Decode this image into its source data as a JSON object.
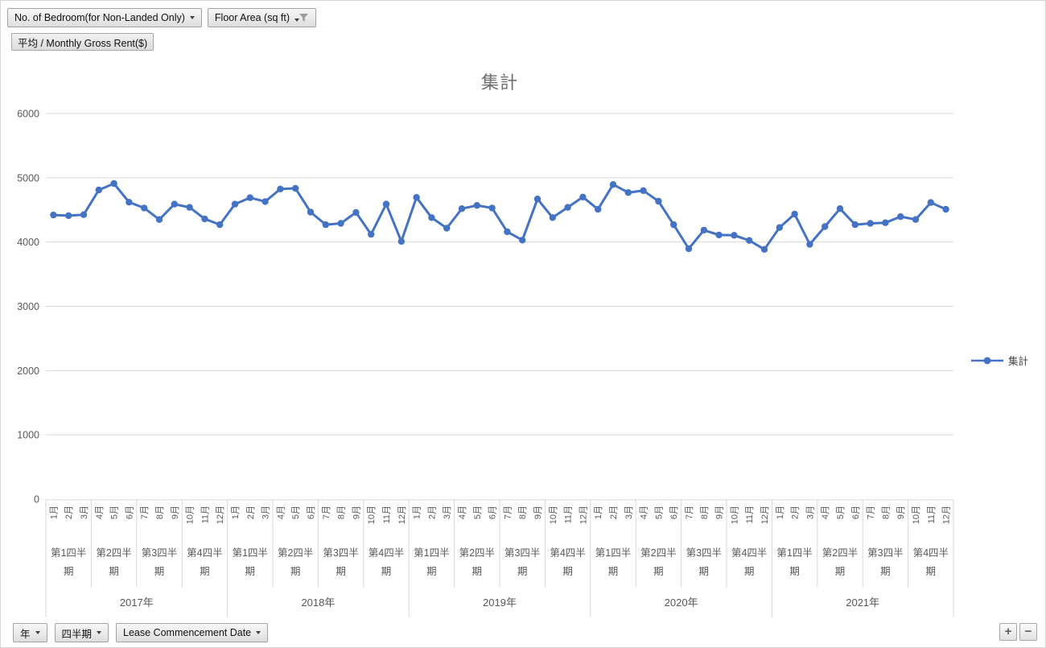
{
  "pivot_buttons": {
    "top": [
      {
        "label": "No. of Bedroom(for Non-Landed Only)",
        "filtered": false
      },
      {
        "label": "Floor Area (sq ft)",
        "filtered": true
      }
    ],
    "value_button": "平均 / Monthly Gross Rent($)",
    "bottom": [
      {
        "label": "年"
      },
      {
        "label": "四半期"
      },
      {
        "label": "Lease Commencement Date"
      }
    ],
    "zoom_in": "+",
    "zoom_out": "−"
  },
  "chart_data": {
    "type": "line",
    "title": "集計",
    "legend": [
      "集計"
    ],
    "legend_position": "right",
    "series_color": "#4472C4",
    "grid": true,
    "ylim": [
      0,
      6000
    ],
    "yticks": [
      0,
      1000,
      2000,
      3000,
      4000,
      5000,
      6000
    ],
    "years": [
      "2017年",
      "2018年",
      "2019年",
      "2020年",
      "2021年"
    ],
    "quarters": [
      "第1四半期",
      "第2四半期",
      "第3四半期",
      "第4四半期"
    ],
    "months": [
      "1月",
      "2月",
      "3月",
      "4月",
      "5月",
      "6月",
      "7月",
      "8月",
      "9月",
      "10月",
      "11月",
      "12月"
    ],
    "axis_field_rows": [
      "月",
      "四半期",
      "年"
    ],
    "series": [
      {
        "name": "集計",
        "values": [
          4420,
          4410,
          4425,
          4810,
          4910,
          4620,
          4530,
          4350,
          4590,
          4540,
          4360,
          4270,
          4590,
          4690,
          4630,
          4825,
          4835,
          4465,
          4270,
          4290,
          4460,
          4120,
          4590,
          4010,
          4695,
          4380,
          4215,
          4520,
          4570,
          4530,
          4160,
          4030,
          4670,
          4380,
          4540,
          4700,
          4510,
          4895,
          4770,
          4800,
          4635,
          4270,
          3895,
          4185,
          4110,
          4105,
          4025,
          3885,
          4225,
          4435,
          3965,
          4240,
          4520,
          4270,
          4290,
          4300,
          4395,
          4350,
          4615,
          4510
        ]
      }
    ],
    "colors": {
      "gridline": "#D9D9D9",
      "axis_text": "#595959",
      "title_text": "#6F6F6F"
    }
  }
}
